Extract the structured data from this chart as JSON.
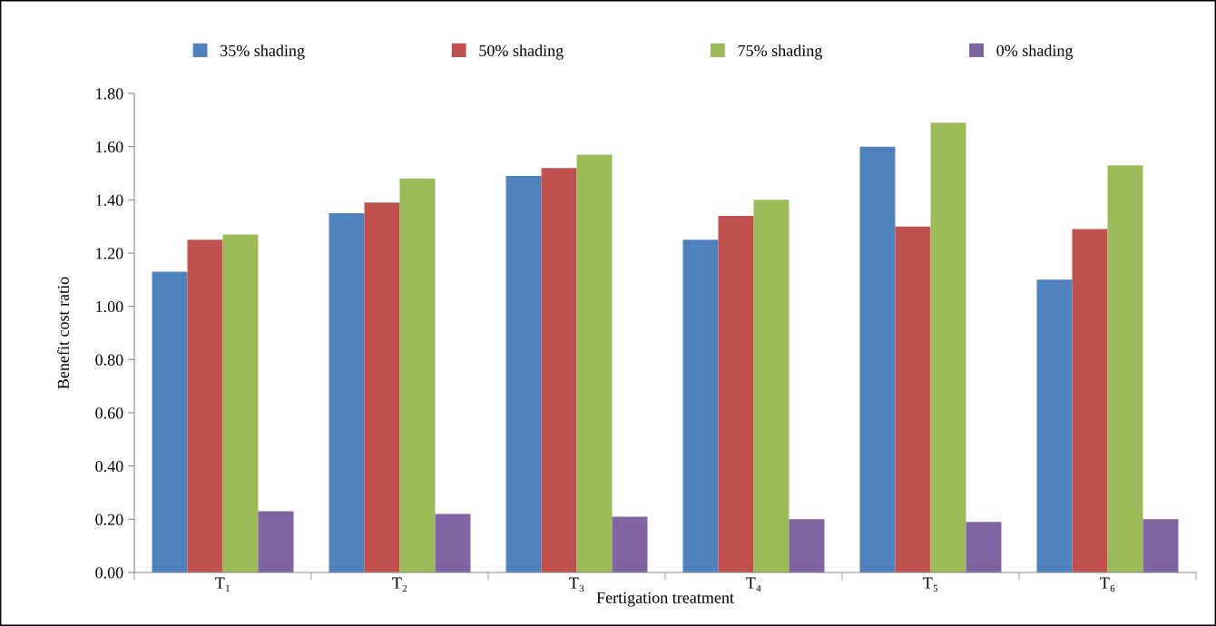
{
  "chart_data": {
    "type": "bar",
    "xlabel": "Fertigation treatment",
    "ylabel": "Benefit cost ratio",
    "categories": [
      "T₁",
      "T₂",
      "T₃",
      "T₄",
      "T₅",
      "T₆"
    ],
    "series": [
      {
        "name": "35% shading",
        "color": "#4f81bd",
        "values": [
          1.13,
          1.35,
          1.49,
          1.25,
          1.6,
          1.1
        ]
      },
      {
        "name": "50% shading",
        "color": "#c0504d",
        "values": [
          1.25,
          1.39,
          1.52,
          1.34,
          1.3,
          1.29
        ]
      },
      {
        "name": "75% shading",
        "color": "#9bbb59",
        "values": [
          1.27,
          1.48,
          1.57,
          1.4,
          1.69,
          1.53
        ]
      },
      {
        "name": "0% shading",
        "color": "#8064a2",
        "values": [
          0.23,
          0.22,
          0.21,
          0.2,
          0.19,
          0.2
        ]
      }
    ],
    "ylim": [
      0,
      1.8
    ],
    "yticks": [
      {
        "value": 0,
        "label": "0.00"
      },
      {
        "value": 0.2,
        "label": "0.20"
      },
      {
        "value": 0.4,
        "label": "0.40"
      },
      {
        "value": 0.6,
        "label": "0.60"
      },
      {
        "value": 0.8,
        "label": "0.80"
      },
      {
        "value": 1.0,
        "label": "1.00"
      },
      {
        "value": 1.2,
        "label": "1.20"
      },
      {
        "value": 1.4,
        "label": "1.40"
      },
      {
        "value": 1.6,
        "label": "1.60"
      },
      {
        "value": 1.8,
        "label": "1.80"
      }
    ],
    "grid": false,
    "legend": "top"
  }
}
